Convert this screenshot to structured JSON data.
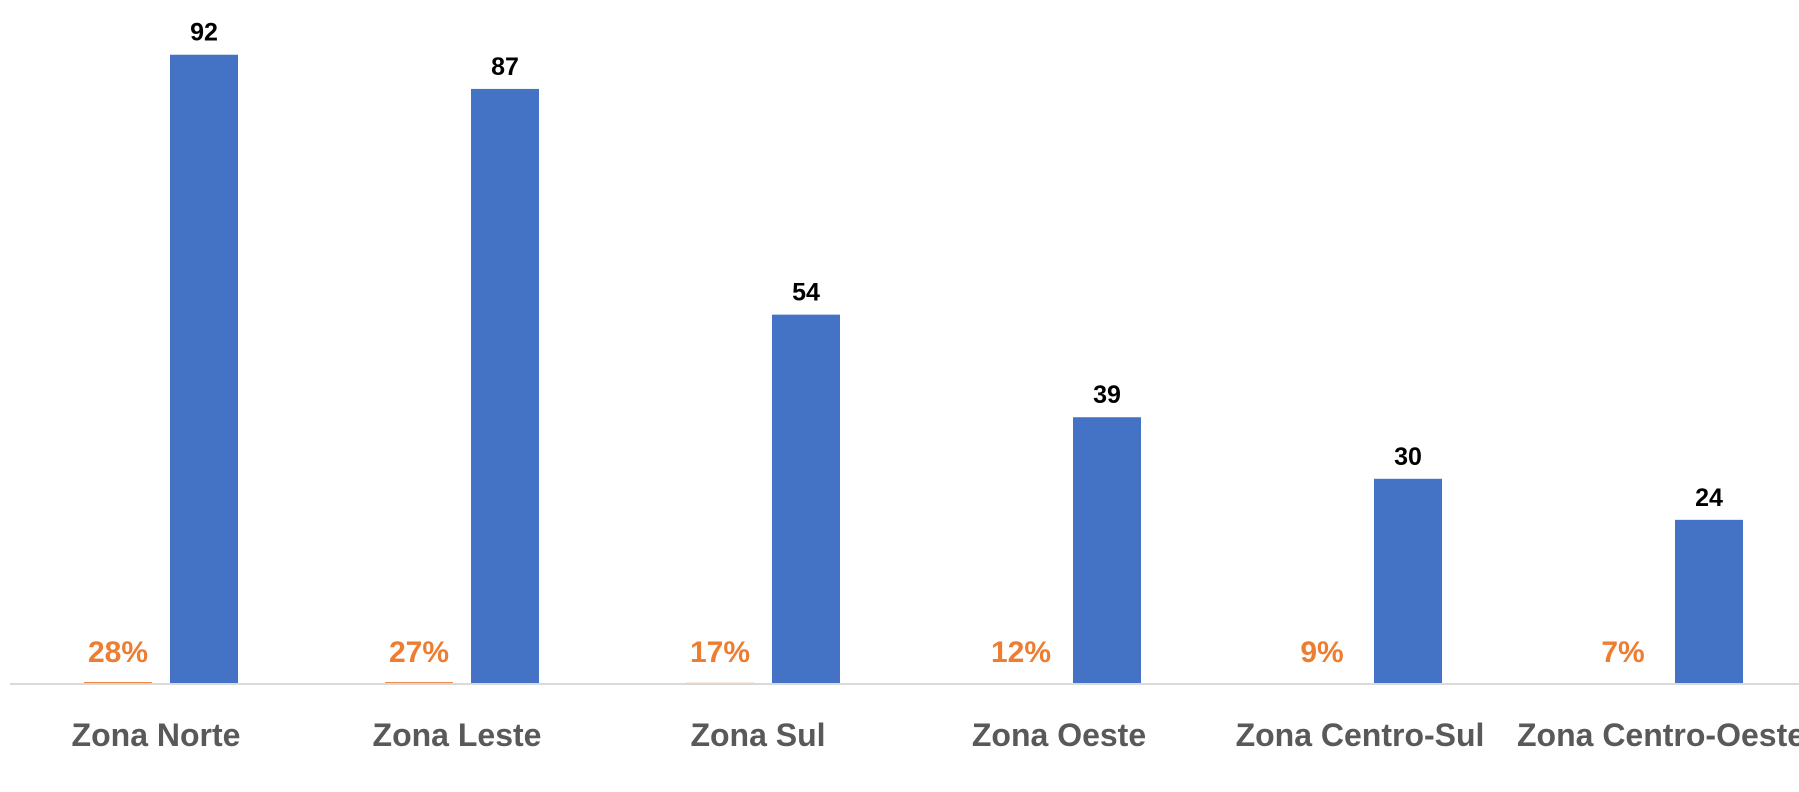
{
  "chart_data": {
    "type": "bar",
    "categories": [
      "Zona Norte",
      "Zona Leste",
      "Zona Sul",
      "Zona Oeste",
      "Zona Centro-Sul",
      "Zona Centro-Oeste"
    ],
    "series": [
      {
        "color": "#ed7d31",
        "values": [
          0.28,
          0.27,
          0.17,
          0.12,
          0.09,
          0.07
        ],
        "value_labels": [
          "28%",
          "27%",
          "17%",
          "12%",
          "9%",
          "7%"
        ]
      },
      {
        "color": "#4472c4",
        "values": [
          92,
          87,
          54,
          39,
          30,
          24
        ]
      }
    ],
    "ylim": [
      0,
      100
    ]
  }
}
